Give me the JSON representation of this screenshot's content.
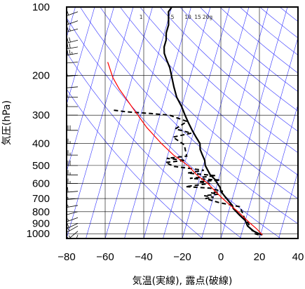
{
  "chart_data": {
    "type": "line",
    "title": "",
    "xlabel": "気温(実線), 露点(破線)",
    "ylabel": "気圧(hPa)",
    "xlim": [
      -80,
      40
    ],
    "ylim": [
      1050,
      100
    ],
    "yscale": "log",
    "grid": true,
    "x_ticks": [
      -80,
      -60,
      -40,
      -20,
      0,
      20,
      40
    ],
    "y_ticks": [
      100,
      200,
      300,
      400,
      500,
      600,
      700,
      800,
      900,
      1000
    ],
    "mixing_ratio_labels": [
      "1",
      "5",
      "10",
      "15",
      "20g"
    ],
    "mixing_ratio_values": [
      1,
      5,
      10,
      15,
      20
    ],
    "colors": {
      "temperature": "#000000",
      "dewpoint": "#000000",
      "parcel": "#ff0000",
      "isotherms": "#3333ff",
      "frame": "#000000"
    },
    "series": [
      {
        "style": "solid",
        "points": [
          [
            21,
            1012
          ],
          [
            19,
            1000
          ],
          [
            16,
            975
          ],
          [
            14,
            950
          ],
          [
            12,
            925
          ],
          [
            11,
            900
          ],
          [
            10,
            875
          ],
          [
            8,
            850
          ],
          [
            6,
            825
          ],
          [
            4,
            800
          ],
          [
            2,
            775
          ],
          [
            1,
            750
          ],
          [
            -1,
            725
          ],
          [
            -3,
            700
          ],
          [
            -5,
            675
          ],
          [
            -7,
            650
          ],
          [
            -8,
            625
          ],
          [
            -10,
            600
          ],
          [
            -12,
            575
          ],
          [
            -15,
            550
          ],
          [
            -17,
            525
          ],
          [
            -19,
            500
          ],
          [
            -20,
            475
          ],
          [
            -22,
            450
          ],
          [
            -24,
            425
          ],
          [
            -25,
            400
          ],
          [
            -28,
            375
          ],
          [
            -31,
            350
          ],
          [
            -34,
            325
          ],
          [
            -37,
            300
          ],
          [
            -40,
            275
          ],
          [
            -44,
            250
          ],
          [
            -47,
            225
          ],
          [
            -50,
            200
          ],
          [
            -52,
            185
          ],
          [
            -55,
            170
          ],
          [
            -57,
            160
          ],
          [
            -58,
            150
          ],
          [
            -58,
            140
          ],
          [
            -59,
            130
          ],
          [
            -59,
            120
          ],
          [
            -60,
            112
          ],
          [
            -61,
            105
          ],
          [
            -60,
            100
          ]
        ]
      },
      {
        "style": "dashed",
        "points": [
          [
            19,
            1012
          ],
          [
            17,
            1000
          ],
          [
            14,
            950
          ],
          [
            12,
            900
          ],
          [
            9,
            850
          ],
          [
            7,
            800
          ],
          [
            5,
            760
          ],
          [
            -6,
            730
          ],
          [
            -14,
            700
          ],
          [
            -10,
            690
          ],
          [
            -15,
            680
          ],
          [
            -8,
            670
          ],
          [
            -12,
            660
          ],
          [
            -6,
            650
          ],
          [
            -10,
            640
          ],
          [
            -13,
            630
          ],
          [
            -26,
            620
          ],
          [
            -14,
            600
          ],
          [
            -20,
            590
          ],
          [
            -9,
            580
          ],
          [
            -25,
            570
          ],
          [
            -12,
            555
          ],
          [
            -27,
            540
          ],
          [
            -19,
            525
          ],
          [
            -35,
            505
          ],
          [
            -40,
            485
          ],
          [
            -30,
            475
          ],
          [
            -40,
            465
          ],
          [
            -30,
            455
          ],
          [
            -33,
            405
          ],
          [
            -40,
            375
          ],
          [
            -31,
            360
          ],
          [
            -40,
            345
          ],
          [
            -35,
            320
          ],
          [
            -45,
            300
          ],
          [
            -55,
            295
          ],
          [
            -68,
            290
          ],
          [
            -75,
            285
          ]
        ]
      },
      {
        "style": "parcel",
        "points": [
          [
            21,
            1012
          ],
          [
            17,
            950
          ],
          [
            13,
            900
          ],
          [
            9,
            850
          ],
          [
            5,
            800
          ],
          [
            0,
            750
          ],
          [
            -5,
            700
          ],
          [
            -10,
            650
          ],
          [
            -15,
            600
          ],
          [
            -22,
            550
          ],
          [
            -28,
            500
          ],
          [
            -37,
            450
          ],
          [
            -45,
            400
          ],
          [
            -55,
            340
          ],
          [
            -65,
            280
          ],
          [
            -75,
            230
          ],
          [
            -80,
            205
          ],
          [
            -85,
            175
          ]
        ]
      }
    ],
    "wind_barbs": [
      {
        "p": 1012,
        "speed": 5,
        "dir": 200
      },
      {
        "p": 975,
        "speed": 25,
        "dir": 230
      },
      {
        "p": 925,
        "speed": 30,
        "dir": 240
      },
      {
        "p": 900,
        "speed": 30,
        "dir": 245
      },
      {
        "p": 850,
        "speed": 25,
        "dir": 250
      },
      {
        "p": 800,
        "speed": 20,
        "dir": 255
      },
      {
        "p": 750,
        "speed": 25,
        "dir": 260
      },
      {
        "p": 700,
        "speed": 25,
        "dir": 265
      },
      {
        "p": 650,
        "speed": 30,
        "dir": 265
      },
      {
        "p": 600,
        "speed": 35,
        "dir": 270
      },
      {
        "p": 550,
        "speed": 35,
        "dir": 270
      },
      {
        "p": 500,
        "speed": 40,
        "dir": 270
      },
      {
        "p": 450,
        "speed": 35,
        "dir": 270
      },
      {
        "p": 400,
        "speed": 35,
        "dir": 270
      },
      {
        "p": 350,
        "speed": 40,
        "dir": 270
      },
      {
        "p": 300,
        "speed": 50,
        "dir": 270
      },
      {
        "p": 275,
        "speed": 55,
        "dir": 270
      },
      {
        "p": 250,
        "speed": 55,
        "dir": 270
      },
      {
        "p": 225,
        "speed": 50,
        "dir": 265
      },
      {
        "p": 200,
        "speed": 55,
        "dir": 265
      },
      {
        "p": 175,
        "speed": 50,
        "dir": 265
      },
      {
        "p": 160,
        "speed": 45,
        "dir": 260
      },
      {
        "p": 150,
        "speed": 40,
        "dir": 260
      },
      {
        "p": 140,
        "speed": 40,
        "dir": 255
      },
      {
        "p": 125,
        "speed": 35,
        "dir": 255
      },
      {
        "p": 115,
        "speed": 30,
        "dir": 250
      },
      {
        "p": 105,
        "speed": 30,
        "dir": 250
      }
    ]
  }
}
